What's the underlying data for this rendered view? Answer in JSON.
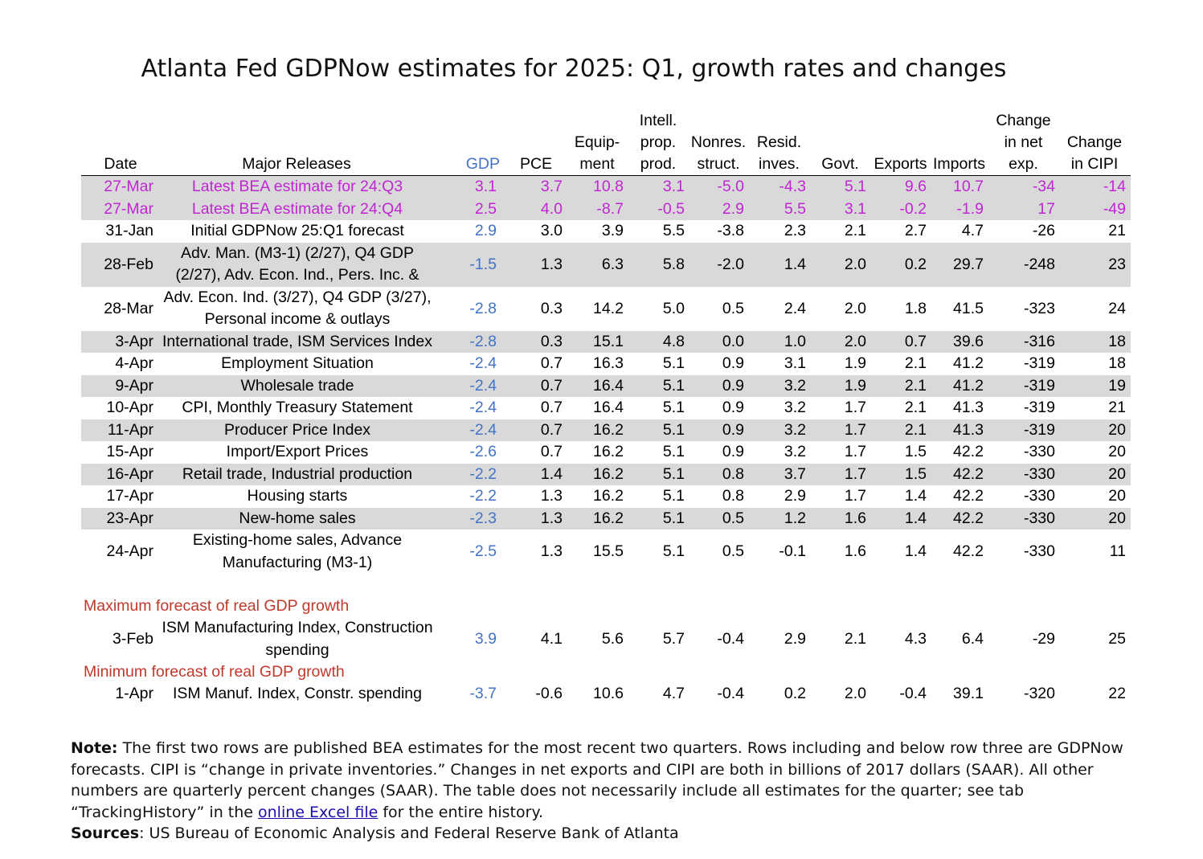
{
  "title": "Atlanta Fed GDPNow estimates for 2025: Q1, growth rates and changes",
  "headers": {
    "date": "Date",
    "major_releases": "Major Releases",
    "gdp": "GDP",
    "pce": "PCE",
    "equipment": [
      "Equip-",
      "ment"
    ],
    "intell_prop": [
      "Intell.",
      "prop.",
      "prod."
    ],
    "nonres_struct": [
      "Nonres.",
      "struct."
    ],
    "resid_inves": [
      "Resid.",
      "inves."
    ],
    "govt": "Govt.",
    "exports": "Exports",
    "imports": "Imports",
    "change_net_exp": [
      "Change",
      "in net",
      "exp."
    ],
    "change_cipi": [
      "Change",
      "in CIPI"
    ]
  },
  "rows": [
    {
      "date": "27-Mar",
      "release": "Latest BEA estimate for 24:Q3",
      "vals": [
        "3.1",
        "3.7",
        "10.8",
        "3.1",
        "-5.0",
        "-4.3",
        "5.1",
        "9.6",
        "10.7",
        "-34",
        "-14"
      ]
    },
    {
      "date": "27-Mar",
      "release": "Latest BEA estimate for 24:Q4",
      "vals": [
        "2.5",
        "4.0",
        "-8.7",
        "-0.5",
        "2.9",
        "5.5",
        "3.1",
        "-0.2",
        "-1.9",
        "17",
        "-49"
      ]
    },
    {
      "date": "31-Jan",
      "release": "Initial GDPNow 25:Q1 forecast",
      "vals": [
        "2.9",
        "3.0",
        "3.9",
        "5.5",
        "-3.8",
        "2.3",
        "2.1",
        "2.7",
        "4.7",
        "-26",
        "21"
      ]
    },
    {
      "date": "28-Feb",
      "release": "Adv. Man. (M3-1) (2/27), Q4 GDP (2/27), Adv. Econ. Ind., Pers. Inc. &",
      "vals": [
        "-1.5",
        "1.3",
        "6.3",
        "5.8",
        "-2.0",
        "1.4",
        "2.0",
        "0.2",
        "29.7",
        "-248",
        "23"
      ]
    },
    {
      "date": "28-Mar",
      "release": "Adv. Econ. Ind. (3/27), Q4 GDP (3/27), Personal income & outlays",
      "vals": [
        "-2.8",
        "0.3",
        "14.2",
        "5.0",
        "0.5",
        "2.4",
        "2.0",
        "1.8",
        "41.5",
        "-323",
        "24"
      ]
    },
    {
      "date": "3-Apr",
      "release": "International trade, ISM Services Index",
      "vals": [
        "-2.8",
        "0.3",
        "15.1",
        "4.8",
        "0.0",
        "1.0",
        "2.0",
        "0.7",
        "39.6",
        "-316",
        "18"
      ]
    },
    {
      "date": "4-Apr",
      "release": "Employment Situation",
      "vals": [
        "-2.4",
        "0.7",
        "16.3",
        "5.1",
        "0.9",
        "3.1",
        "1.9",
        "2.1",
        "41.2",
        "-319",
        "18"
      ]
    },
    {
      "date": "9-Apr",
      "release": "Wholesale trade",
      "vals": [
        "-2.4",
        "0.7",
        "16.4",
        "5.1",
        "0.9",
        "3.2",
        "1.9",
        "2.1",
        "41.2",
        "-319",
        "19"
      ]
    },
    {
      "date": "10-Apr",
      "release": "CPI, Monthly Treasury Statement",
      "vals": [
        "-2.4",
        "0.7",
        "16.4",
        "5.1",
        "0.9",
        "3.2",
        "1.7",
        "2.1",
        "41.3",
        "-319",
        "21"
      ]
    },
    {
      "date": "11-Apr",
      "release": "Producer Price Index",
      "vals": [
        "-2.4",
        "0.7",
        "16.2",
        "5.1",
        "0.9",
        "3.2",
        "1.7",
        "2.1",
        "41.3",
        "-319",
        "20"
      ]
    },
    {
      "date": "15-Apr",
      "release": "Import/Export Prices",
      "vals": [
        "-2.6",
        "0.7",
        "16.2",
        "5.1",
        "0.9",
        "3.2",
        "1.7",
        "1.5",
        "42.2",
        "-330",
        "20"
      ]
    },
    {
      "date": "16-Apr",
      "release": "Retail trade, Industrial production",
      "vals": [
        "-2.2",
        "1.4",
        "16.2",
        "5.1",
        "0.8",
        "3.7",
        "1.7",
        "1.5",
        "42.2",
        "-330",
        "20"
      ]
    },
    {
      "date": "17-Apr",
      "release": "Housing starts",
      "vals": [
        "-2.2",
        "1.3",
        "16.2",
        "5.1",
        "0.8",
        "2.9",
        "1.7",
        "1.4",
        "42.2",
        "-330",
        "20"
      ]
    },
    {
      "date": "23-Apr",
      "release": "New-home sales",
      "vals": [
        "-2.3",
        "1.3",
        "16.2",
        "5.1",
        "0.5",
        "1.2",
        "1.6",
        "1.4",
        "42.2",
        "-330",
        "20"
      ]
    },
    {
      "date": "24-Apr",
      "release": "Existing-home sales, Advance Manufacturing (M3-1)",
      "vals": [
        "-2.5",
        "1.3",
        "15.5",
        "5.1",
        "0.5",
        "-0.1",
        "1.6",
        "1.4",
        "42.2",
        "-330",
        "11"
      ]
    }
  ],
  "max_section": {
    "label": "Maximum forecast of real GDP growth",
    "row": {
      "date": "3-Feb",
      "release": "ISM Manufacturing Index, Construction spending",
      "vals": [
        "3.9",
        "4.1",
        "5.6",
        "5.7",
        "-0.4",
        "2.9",
        "2.1",
        "4.3",
        "6.4",
        "-29",
        "25"
      ]
    }
  },
  "min_section": {
    "label": "Minimum forecast of real GDP growth",
    "row": {
      "date": "1-Apr",
      "release": "ISM Manuf. Index, Constr. spending",
      "vals": [
        "-3.7",
        "-0.6",
        "10.6",
        "4.7",
        "-0.4",
        "0.2",
        "2.0",
        "-0.4",
        "39.1",
        "-320",
        "22"
      ]
    }
  },
  "notes": {
    "note_label": "Note:",
    "note_text_1": " The first two rows are published BEA estimates for the most recent two quarters. Rows including and below row three are GDPNow forecasts. CIPI is “change in private inventories.” Changes in net exports and CIPI are both in billions of 2017 dollars (SAAR). All other numbers are quarterly percent changes (SAAR). The table does not necessarily include all estimates for the quarter; see tab “TrackingHistory” in the ",
    "link_text": "online Excel file",
    "note_text_2": " for the entire history.",
    "sources_label": "Sources",
    "sources_text": ": US Bureau of Economic Analysis and Federal Reserve Bank of Atlanta"
  },
  "colors": {
    "bea_text": "#c026d3",
    "gdp_text": "#4472c4",
    "section_label": "#c0392b",
    "shade": "#d9d9d9"
  }
}
